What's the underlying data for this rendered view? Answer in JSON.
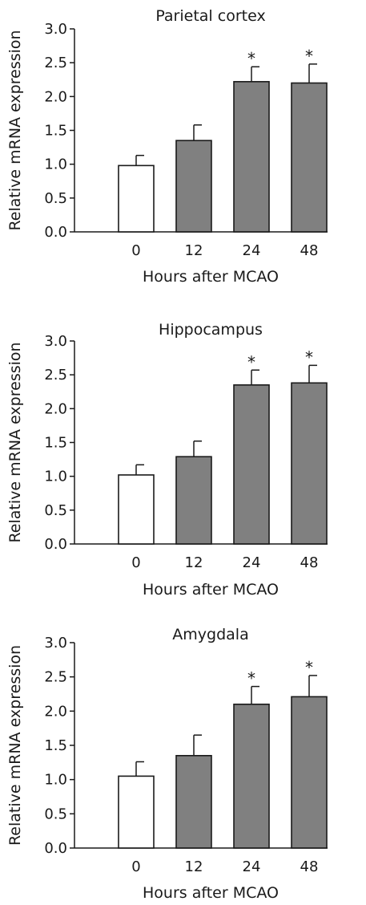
{
  "chart_data": [
    {
      "type": "bar",
      "title": "Parietal cortex",
      "xlabel": "Hours after MCAO",
      "ylabel": "Relative mRNA expression",
      "ylim": [
        0,
        3.0
      ],
      "yticks": [
        "0.0",
        "0.5",
        "1.0",
        "1.5",
        "2.0",
        "2.5",
        "3.0"
      ],
      "categories": [
        "0",
        "12",
        "24",
        "48"
      ],
      "values": [
        0.98,
        1.35,
        2.22,
        2.2
      ],
      "errors": [
        0.15,
        0.23,
        0.22,
        0.28
      ],
      "significance": [
        "",
        "",
        "*",
        "*"
      ],
      "colors": [
        "#ffffff",
        "#808080",
        "#808080",
        "#808080"
      ]
    },
    {
      "type": "bar",
      "title": "Hippocampus",
      "xlabel": "Hours after MCAO",
      "ylabel": "Relative mRNA expression",
      "ylim": [
        0,
        3.0
      ],
      "yticks": [
        "0.0",
        "0.5",
        "1.0",
        "1.5",
        "2.0",
        "2.5",
        "3.0"
      ],
      "categories": [
        "0",
        "12",
        "24",
        "48"
      ],
      "values": [
        1.02,
        1.29,
        2.35,
        2.38
      ],
      "errors": [
        0.15,
        0.23,
        0.22,
        0.26
      ],
      "significance": [
        "",
        "",
        "*",
        "*"
      ],
      "colors": [
        "#ffffff",
        "#808080",
        "#808080",
        "#808080"
      ]
    },
    {
      "type": "bar",
      "title": "Amygdala",
      "xlabel": "Hours after MCAO",
      "ylabel": "Relative mRNA expression",
      "ylim": [
        0,
        3.0
      ],
      "yticks": [
        "0.0",
        "0.5",
        "1.0",
        "1.5",
        "2.0",
        "2.5",
        "3.0"
      ],
      "categories": [
        "0",
        "12",
        "24",
        "48"
      ],
      "values": [
        1.05,
        1.35,
        2.1,
        2.21
      ],
      "errors": [
        0.21,
        0.3,
        0.26,
        0.31
      ],
      "significance": [
        "",
        "",
        "*",
        "*"
      ],
      "colors": [
        "#ffffff",
        "#808080",
        "#808080",
        "#808080"
      ]
    }
  ]
}
